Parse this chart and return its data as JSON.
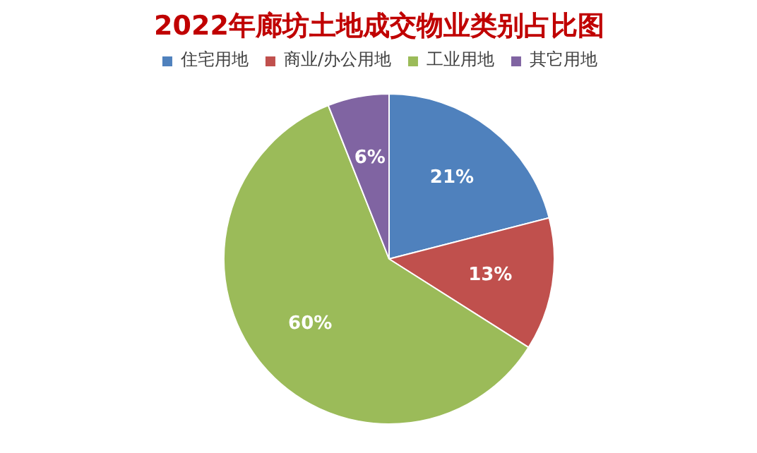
{
  "chart_data": {
    "type": "pie",
    "title": "2022年廊坊土地成交物业类别占比图",
    "categories": [
      "住宅用地",
      "商业/办公用地",
      "工业用地",
      "其它用地"
    ],
    "values": [
      21,
      13,
      60,
      6
    ],
    "colors": [
      "#4f81bd",
      "#c0504d",
      "#9bbb59",
      "#8064a2"
    ],
    "value_labels": [
      "21%",
      "13%",
      "60%",
      "6%"
    ],
    "legend": "top"
  }
}
